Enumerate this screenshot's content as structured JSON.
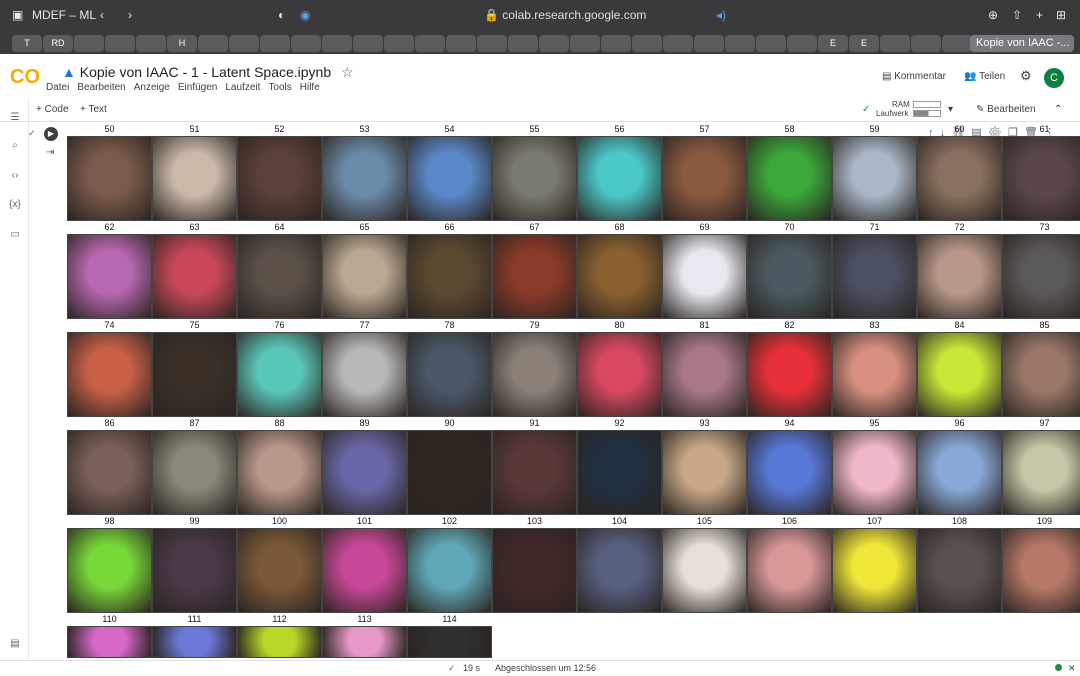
{
  "browser": {
    "profile": "MDEF – ML",
    "url": "colab.research.google.com",
    "tabs": [
      "T",
      "RD",
      "",
      "",
      "",
      "H",
      "",
      "",
      "",
      "",
      "",
      "",
      "",
      "",
      "",
      "",
      "",
      "",
      "",
      "",
      "",
      "",
      "",
      "",
      "",
      "",
      "E",
      "E",
      "",
      "",
      ""
    ],
    "active_tab": "Kopie von IAAC -..."
  },
  "notebook": {
    "logo": "CO",
    "title": "Kopie von IAAC - 1 - Latent Space.ipynb",
    "menu": [
      "Datei",
      "Bearbeiten",
      "Anzeige",
      "Einfügen",
      "Laufzeit",
      "Tools",
      "Hilfe"
    ],
    "comment": "Kommentar",
    "share": "Teilen",
    "avatar": "C"
  },
  "toolbar": {
    "add_code": "+ Code",
    "add_text": "+ Text",
    "ram": "RAM",
    "drive": "Laufwerk",
    "edit": "Bearbeiten"
  },
  "cell_labels": [
    "50",
    "51",
    "52",
    "53",
    "54",
    "55",
    "56",
    "57",
    "58",
    "59",
    "60",
    "61",
    "62",
    "63",
    "64",
    "65",
    "66",
    "67",
    "68",
    "69",
    "70",
    "71",
    "72",
    "73",
    "74",
    "75",
    "76",
    "77",
    "78",
    "79",
    "80",
    "81",
    "82",
    "83",
    "84",
    "85",
    "86",
    "87",
    "88",
    "89",
    "90",
    "91",
    "92",
    "93",
    "94",
    "95",
    "96",
    "97",
    "98",
    "99",
    "100",
    "101",
    "102",
    "103",
    "104",
    "105",
    "106",
    "107",
    "108",
    "109",
    "110",
    "111",
    "112",
    "113",
    "114"
  ],
  "cell_colors": [
    "#7a5a4a",
    "#c9b9a8",
    "#5a4038",
    "#6a8aa8",
    "#5a88c8",
    "#7a7a70",
    "#4ac8c8",
    "#8a5a40",
    "#3aa83a",
    "#aab8c8",
    "#8a7060",
    "#5a4848",
    "#b868b0",
    "#c84858",
    "#5a5048",
    "#b8a890",
    "#5a4a30",
    "#8a3a28",
    "#8a6030",
    "#e8e8f0",
    "#4a5a60",
    "#4a5060",
    "#b89888",
    "#5a5858",
    "#c86048",
    "#3a3028",
    "#5ac8b8",
    "#b8b8b8",
    "#4a5868",
    "#8a8078",
    "#d84860",
    "#a87888",
    "#e83038",
    "#d89080",
    "#c8e838",
    "#9a7868",
    "#7a6058",
    "#8a8878",
    "#b89888",
    "#6868a8",
    "#302820",
    "#5a3838",
    "#203040",
    "#c8a888",
    "#5878d8",
    "#f0b8c8",
    "#88a8d8",
    "#c8c8a8",
    "#78d838",
    "#4a3848",
    "#7a5838",
    "#c84898",
    "#60a8b8",
    "#402828",
    "#586080",
    "#e8e0d8",
    "#d89898",
    "#f0e838",
    "#5a5050",
    "#b87868",
    "#d868c8",
    "#6a78d8",
    "#b8d828",
    "#e898c8",
    "#303030"
  ],
  "status": {
    "time": "19 s",
    "done": "Abgeschlossen um 12:56"
  }
}
